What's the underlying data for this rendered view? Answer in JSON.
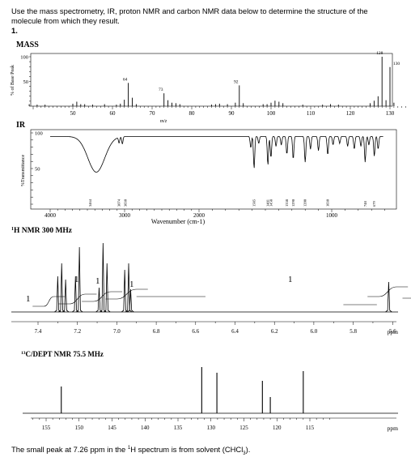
{
  "intro": "Use the mass spectrometry, IR, proton NMR and carbon NMR data below to determine the structure of the molecule from which they result.",
  "problem_number": "1.",
  "footer": "The small peak at 7.26 ppm in the 1H spectrum is from solvent (CHCl3).",
  "chart_data": [
    {
      "type": "bar",
      "title": "MASS",
      "ylabel": "% of Base Peak",
      "xlabel": "m/z",
      "x_ticks": [
        50,
        60,
        70,
        80,
        90,
        100,
        110,
        120,
        130
      ],
      "y_ticks": [
        50,
        100
      ],
      "xlim": [
        40,
        135
      ],
      "ylim": [
        0,
        100
      ],
      "peaks": [
        {
          "x": 39,
          "y": 4
        },
        {
          "x": 41,
          "y": 3
        },
        {
          "x": 43,
          "y": 3
        },
        {
          "x": 50,
          "y": 5
        },
        {
          "x": 51,
          "y": 9
        },
        {
          "x": 52,
          "y": 4
        },
        {
          "x": 53,
          "y": 4
        },
        {
          "x": 55,
          "y": 3
        },
        {
          "x": 58,
          "y": 4
        },
        {
          "x": 61,
          "y": 3
        },
        {
          "x": 62,
          "y": 5
        },
        {
          "x": 63,
          "y": 13
        },
        {
          "x": 64,
          "y": 47
        },
        {
          "x": 65,
          "y": 17
        },
        {
          "x": 66,
          "y": 4
        },
        {
          "x": 73,
          "y": 26
        },
        {
          "x": 74,
          "y": 12
        },
        {
          "x": 75,
          "y": 7
        },
        {
          "x": 76,
          "y": 6
        },
        {
          "x": 77,
          "y": 4
        },
        {
          "x": 85,
          "y": 3
        },
        {
          "x": 86,
          "y": 4
        },
        {
          "x": 87,
          "y": 5
        },
        {
          "x": 89,
          "y": 4
        },
        {
          "x": 91,
          "y": 7
        },
        {
          "x": 92,
          "y": 42
        },
        {
          "x": 93,
          "y": 6
        },
        {
          "x": 98,
          "y": 4
        },
        {
          "x": 99,
          "y": 4
        },
        {
          "x": 100,
          "y": 7
        },
        {
          "x": 101,
          "y": 11
        },
        {
          "x": 102,
          "y": 9
        },
        {
          "x": 103,
          "y": 6
        },
        {
          "x": 108,
          "y": 3
        },
        {
          "x": 113,
          "y": 3
        },
        {
          "x": 115,
          "y": 4
        },
        {
          "x": 117,
          "y": 3
        },
        {
          "x": 125,
          "y": 6
        },
        {
          "x": 126,
          "y": 11
        },
        {
          "x": 127,
          "y": 20
        },
        {
          "x": 128,
          "y": 100
        },
        {
          "x": 129,
          "y": 12
        },
        {
          "x": 130,
          "y": 79
        },
        {
          "x": 131,
          "y": 7
        }
      ],
      "labels": [
        {
          "x": 64,
          "text": "64"
        },
        {
          "x": 73,
          "text": "73"
        },
        {
          "x": 92,
          "text": "92"
        },
        {
          "x": 128,
          "text": "128"
        },
        {
          "x": 130,
          "text": "130"
        }
      ]
    },
    {
      "type": "line",
      "title": "IR",
      "ylabel": "%Transmittance",
      "xlabel": "Wavenumber (cm-1)",
      "x_ticks": [
        4000,
        3000,
        2000,
        1000
      ],
      "y_ticks": [
        50,
        100
      ],
      "xlim": [
        4000,
        500
      ],
      "peaks_cm1": [
        3464,
        3074,
        3030,
        1585,
        1481,
        1458,
        1338,
        1290,
        1200,
        1030,
        748,
        679
      ],
      "peak_labels": [
        "3464",
        "3074",
        "3030",
        "1585",
        "1481",
        "1458",
        "1338",
        "1290",
        "1200",
        "1030",
        "748",
        "679"
      ]
    },
    {
      "type": "line",
      "title": "1H NMR 300 MHz",
      "xlabel": "ppm",
      "x_ticks": [
        "7.4",
        "7.2",
        "7.0",
        "6.8",
        "6.6",
        "6.4",
        "6.2",
        "6.0",
        "5.8",
        "5.6",
        "5.4"
      ],
      "integrals": [
        "1",
        "1",
        "1",
        "1",
        "1"
      ],
      "peaks_ppm": [
        7.3,
        7.28,
        7.26,
        7.21,
        7.19,
        7.09,
        7.07,
        7.05,
        6.96,
        6.94,
        6.93,
        5.62
      ]
    },
    {
      "type": "line",
      "title": "13C/DEPT NMR 75.5 MHz",
      "xlabel": "ppm",
      "x_ticks": [
        "155",
        "150",
        "145",
        "140",
        "135",
        "130",
        "125",
        "120",
        "115"
      ],
      "peaks_ppm": [
        152.7,
        131.4,
        129.1,
        122.2,
        121.0,
        116.0
      ]
    }
  ]
}
